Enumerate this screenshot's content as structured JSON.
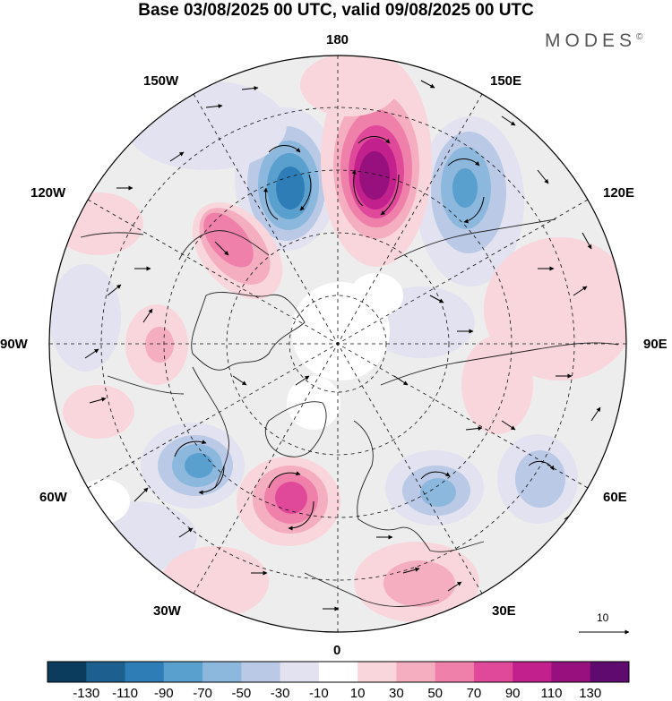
{
  "title": "Base 03/08/2025 00 UTC, valid 09/08/2025 00 UTC",
  "brand": "MODES",
  "brand_mark": "©",
  "longitude_labels": {
    "top": "180",
    "bottom": "0",
    "left": "90W",
    "right": "90E",
    "upper_left_1": "150W",
    "upper_left_2": "120W",
    "lower_left_1": "60W",
    "lower_left_2": "30W",
    "upper_right_1": "150E",
    "upper_right_2": "120E",
    "lower_right_1": "60E",
    "lower_right_2": "30E"
  },
  "reference_vector": "10",
  "colorbar": {
    "colors": [
      "#0b3c5d",
      "#1d5f8f",
      "#2f7db6",
      "#5aa0cf",
      "#8bb8dc",
      "#b9c9e6",
      "#e2e2f0",
      "#ffffff",
      "#f9d6dc",
      "#f4aec0",
      "#ee80aa",
      "#e0489a",
      "#c2208c",
      "#96107e",
      "#5e0a6e"
    ],
    "tick_labels": [
      "-130",
      "-110",
      "-90",
      "-70",
      "-50",
      "-30",
      "-10",
      "10",
      "30",
      "50",
      "70",
      "90",
      "110",
      "130"
    ]
  },
  "anomalies": [
    {
      "name": "trough-bering",
      "sign": "neg",
      "level": 5
    },
    {
      "name": "ridge-date-line",
      "sign": "pos",
      "level": 7
    },
    {
      "name": "trough-east-siberia",
      "sign": "neg",
      "level": 4
    },
    {
      "name": "ridge-alaska",
      "sign": "pos",
      "level": 4
    },
    {
      "name": "trough-labrador",
      "sign": "neg",
      "level": 4
    },
    {
      "name": "ridge-north-atlantic",
      "sign": "pos",
      "level": 5
    },
    {
      "name": "trough-europe",
      "sign": "neg",
      "level": 3
    },
    {
      "name": "ridge-mediterranean",
      "sign": "pos",
      "level": 2
    },
    {
      "name": "trough-central-asia",
      "sign": "neg",
      "level": 2
    },
    {
      "name": "ridge-siberia",
      "sign": "pos",
      "level": 1
    }
  ]
}
